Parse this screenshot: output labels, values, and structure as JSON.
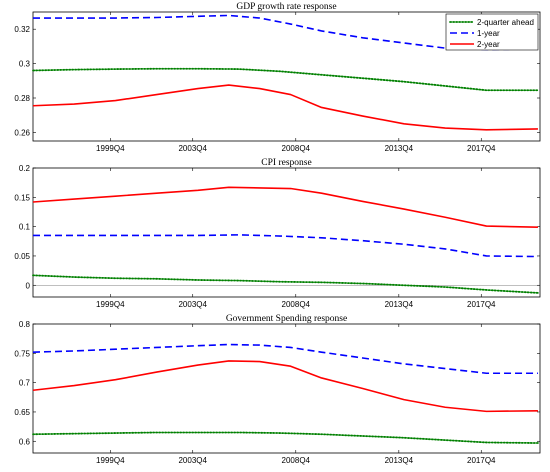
{
  "chart_data": [
    {
      "type": "line",
      "title": "GDP growth rate response",
      "xlabel": "",
      "ylabel": "",
      "xlim": [
        1996.0,
        2020.6
      ],
      "ylim": [
        0.255,
        0.33
      ],
      "yticks": [
        0.26,
        0.28,
        0.3,
        0.32
      ],
      "ytick_labels": [
        "0.26",
        "0.28",
        "0.3",
        "0.32"
      ],
      "xticks": [
        1999.75,
        2003.75,
        2008.75,
        2013.75,
        2017.75
      ],
      "xtick_labels": [
        "1999Q4",
        "2003Q4",
        "2008Q4",
        "2013Q4",
        "2017Q4"
      ],
      "legend": {
        "position": "top-right",
        "entries": [
          "2-quarter ahead",
          "1-year",
          "2-year"
        ]
      },
      "series": [
        {
          "name": "2-quarter ahead",
          "color": "#008000",
          "style": "dotted",
          "x": [
            1996,
            1998,
            2000,
            2002,
            2004,
            2006,
            2008,
            2010,
            2012,
            2014,
            2016,
            2018,
            2020.5
          ],
          "y": [
            0.296,
            0.2965,
            0.2968,
            0.297,
            0.297,
            0.2968,
            0.2955,
            0.2935,
            0.2915,
            0.2895,
            0.287,
            0.2845,
            0.2845
          ]
        },
        {
          "name": "1-year",
          "color": "#0000ff",
          "style": "dashed",
          "x": [
            1996,
            1998,
            2000,
            2002,
            2004,
            2005.5,
            2007,
            2008.5,
            2010,
            2012,
            2014,
            2016,
            2018,
            2020.5
          ],
          "y": [
            0.3265,
            0.3265,
            0.3265,
            0.3268,
            0.3275,
            0.328,
            0.3265,
            0.323,
            0.319,
            0.315,
            0.312,
            0.309,
            0.3082,
            0.3085
          ]
        },
        {
          "name": "2-year",
          "color": "#ff0000",
          "style": "solid",
          "x": [
            1996,
            1998,
            2000,
            2002,
            2004,
            2005.5,
            2007,
            2008.5,
            2010,
            2012,
            2014,
            2016,
            2018,
            2020.5
          ],
          "y": [
            0.2755,
            0.2765,
            0.2785,
            0.282,
            0.2855,
            0.2875,
            0.2855,
            0.282,
            0.2745,
            0.2695,
            0.265,
            0.2625,
            0.2615,
            0.262
          ]
        }
      ]
    },
    {
      "type": "line",
      "title": "CPI response",
      "xlabel": "",
      "ylabel": "",
      "xlim": [
        1996.0,
        2020.6
      ],
      "ylim": [
        -0.02,
        0.2
      ],
      "yticks": [
        0,
        0.05,
        0.1,
        0.15,
        0.2
      ],
      "ytick_labels": [
        "0",
        "0.05",
        "0.1",
        "0.15",
        "0.2"
      ],
      "xticks": [
        1999.75,
        2003.75,
        2008.75,
        2013.75,
        2017.75
      ],
      "xtick_labels": [
        "1999Q4",
        "2003Q4",
        "2008Q4",
        "2013Q4",
        "2017Q4"
      ],
      "zero_line": true,
      "series": [
        {
          "name": "2-quarter ahead",
          "color": "#008000",
          "style": "dotted",
          "x": [
            1996,
            1998,
            2000,
            2002,
            2004,
            2006,
            2008,
            2010,
            2012,
            2014,
            2016,
            2018,
            2020.5
          ],
          "y": [
            0.017,
            0.014,
            0.012,
            0.011,
            0.009,
            0.008,
            0.006,
            0.005,
            0.003,
            0.0,
            -0.003,
            -0.008,
            -0.013
          ]
        },
        {
          "name": "1-year",
          "color": "#0000ff",
          "style": "dashed",
          "x": [
            1996,
            1998,
            2000,
            2002,
            2004,
            2006,
            2008,
            2010,
            2012,
            2014,
            2016,
            2018,
            2020.5
          ],
          "y": [
            0.085,
            0.085,
            0.085,
            0.085,
            0.085,
            0.086,
            0.084,
            0.081,
            0.076,
            0.07,
            0.062,
            0.05,
            0.049
          ]
        },
        {
          "name": "2-year",
          "color": "#ff0000",
          "style": "solid",
          "x": [
            1996,
            1998,
            2000,
            2002,
            2004,
            2005.5,
            2007,
            2008.5,
            2010,
            2012,
            2014,
            2016,
            2018,
            2020.5
          ],
          "y": [
            0.142,
            0.147,
            0.152,
            0.157,
            0.162,
            0.167,
            0.166,
            0.165,
            0.157,
            0.143,
            0.13,
            0.116,
            0.101,
            0.099
          ]
        }
      ]
    },
    {
      "type": "line",
      "title": "Government Spending response",
      "xlabel": "",
      "ylabel": "",
      "xlim": [
        1996.0,
        2020.6
      ],
      "ylim": [
        0.58,
        0.8
      ],
      "yticks": [
        0.6,
        0.65,
        0.7,
        0.75,
        0.8
      ],
      "ytick_labels": [
        "0.6",
        "0.65",
        "0.7",
        "0.75",
        "0.8"
      ],
      "xticks": [
        1999.75,
        2003.75,
        2008.75,
        2013.75,
        2017.75
      ],
      "xtick_labels": [
        "1999Q4",
        "2003Q4",
        "2008Q4",
        "2013Q4",
        "2017Q4"
      ],
      "series": [
        {
          "name": "2-quarter ahead",
          "color": "#008000",
          "style": "dotted",
          "x": [
            1996,
            1998,
            2000,
            2002,
            2004,
            2006,
            2008,
            2010,
            2012,
            2014,
            2016,
            2018,
            2020.5
          ],
          "y": [
            0.612,
            0.613,
            0.614,
            0.615,
            0.615,
            0.615,
            0.614,
            0.612,
            0.609,
            0.606,
            0.602,
            0.598,
            0.597
          ]
        },
        {
          "name": "1-year",
          "color": "#0000ff",
          "style": "dashed",
          "x": [
            1996,
            1998,
            2000,
            2002,
            2004,
            2005.5,
            2007,
            2008.5,
            2010,
            2012,
            2014,
            2016,
            2018,
            2020.5
          ],
          "y": [
            0.752,
            0.754,
            0.757,
            0.76,
            0.763,
            0.765,
            0.764,
            0.76,
            0.752,
            0.742,
            0.732,
            0.724,
            0.716,
            0.716
          ]
        },
        {
          "name": "2-year",
          "color": "#ff0000",
          "style": "solid",
          "x": [
            1996,
            1998,
            2000,
            2002,
            2004,
            2005.5,
            2007,
            2008.5,
            2010,
            2012,
            2014,
            2016,
            2018,
            2020.5
          ],
          "y": [
            0.687,
            0.695,
            0.705,
            0.718,
            0.73,
            0.737,
            0.736,
            0.728,
            0.708,
            0.69,
            0.671,
            0.658,
            0.651,
            0.652
          ]
        }
      ]
    }
  ]
}
